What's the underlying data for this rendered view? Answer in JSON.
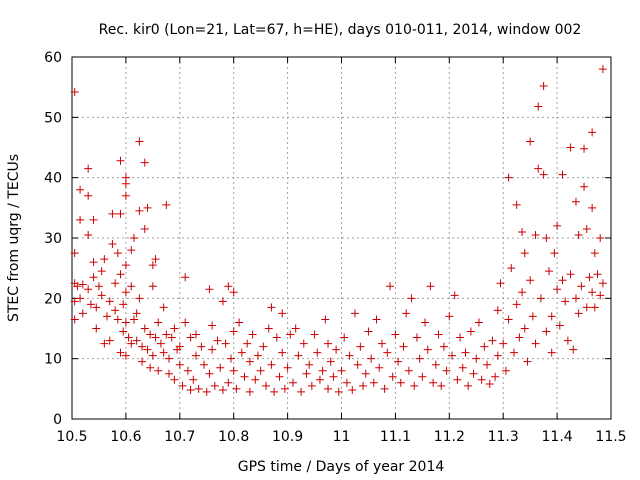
{
  "chart_data": {
    "type": "scatter",
    "title": "Rec. kir0 (Lon=21, Lat=67, h=HE), days 010-011, 2014, window 002",
    "xlabel": "GPS time / Days of year 2014",
    "ylabel": "STEC from uqrg / TECUs",
    "xlim": [
      10.5,
      11.5
    ],
    "ylim": [
      0,
      60
    ],
    "grid": true,
    "x_ticks": [
      10.5,
      10.6,
      10.7,
      10.8,
      10.9,
      11.0,
      11.1,
      11.2,
      11.3,
      11.4,
      11.5
    ],
    "x_tick_labels": [
      "10.5",
      "10.6",
      "10.7",
      "10.8",
      "10.9",
      "11",
      "11.1",
      "11.2",
      "11.3",
      "11.4",
      "11.5"
    ],
    "y_ticks": [
      0,
      10,
      20,
      30,
      40,
      50,
      60
    ],
    "y_tick_labels": [
      "0",
      "10",
      "20",
      "30",
      "40",
      "50",
      "60"
    ],
    "marker": "+",
    "color": "#cc0000",
    "series": [
      {
        "name": "STEC",
        "points": [
          [
            10.505,
            54.2
          ],
          [
            10.505,
            27.5
          ],
          [
            10.505,
            22.5
          ],
          [
            10.505,
            19.5
          ],
          [
            10.505,
            16.5
          ],
          [
            10.51,
            22.0
          ],
          [
            10.515,
            38.0
          ],
          [
            10.515,
            33.0
          ],
          [
            10.515,
            20.0
          ],
          [
            10.52,
            17.5
          ],
          [
            10.52,
            22.3
          ],
          [
            10.53,
            41.5
          ],
          [
            10.53,
            37.0
          ],
          [
            10.53,
            30.5
          ],
          [
            10.53,
            21.5
          ],
          [
            10.535,
            19.0
          ],
          [
            10.54,
            33.0
          ],
          [
            10.54,
            26.0
          ],
          [
            10.54,
            23.5
          ],
          [
            10.545,
            18.5
          ],
          [
            10.545,
            15.0
          ],
          [
            10.55,
            22.0
          ],
          [
            10.555,
            24.5
          ],
          [
            10.555,
            20.5
          ],
          [
            10.56,
            26.5
          ],
          [
            10.56,
            12.5
          ],
          [
            10.565,
            17.0
          ],
          [
            10.57,
            19.5
          ],
          [
            10.57,
            13.0
          ],
          [
            10.575,
            29.0
          ],
          [
            10.575,
            34.0
          ],
          [
            10.58,
            22.5
          ],
          [
            10.58,
            18.0
          ],
          [
            10.585,
            27.5
          ],
          [
            10.585,
            16.5
          ],
          [
            10.59,
            42.8
          ],
          [
            10.59,
            34.0
          ],
          [
            10.59,
            24.0
          ],
          [
            10.59,
            11.0
          ],
          [
            10.595,
            19.0
          ],
          [
            10.595,
            14.5
          ],
          [
            10.6,
            40.0
          ],
          [
            10.6,
            39.0
          ],
          [
            10.6,
            37.0
          ],
          [
            10.6,
            25.5
          ],
          [
            10.6,
            21.0
          ],
          [
            10.6,
            16.0
          ],
          [
            10.6,
            10.5
          ],
          [
            10.605,
            13.5
          ],
          [
            10.61,
            28.0
          ],
          [
            10.61,
            22.0
          ],
          [
            10.61,
            12.5
          ],
          [
            10.615,
            30.0
          ],
          [
            10.615,
            16.5
          ],
          [
            10.62,
            17.5
          ],
          [
            10.62,
            13.0
          ],
          [
            10.625,
            46.0
          ],
          [
            10.625,
            34.5
          ],
          [
            10.625,
            20.0
          ],
          [
            10.63,
            12.0
          ],
          [
            10.63,
            9.5
          ],
          [
            10.635,
            42.5
          ],
          [
            10.635,
            31.5
          ],
          [
            10.635,
            15.0
          ],
          [
            10.64,
            35.0
          ],
          [
            10.64,
            11.5
          ],
          [
            10.645,
            14.0
          ],
          [
            10.645,
            8.5
          ],
          [
            10.65,
            25.5
          ],
          [
            10.65,
            22.0
          ],
          [
            10.65,
            10.5
          ],
          [
            10.655,
            26.5
          ],
          [
            10.655,
            13.5
          ],
          [
            10.66,
            16.0
          ],
          [
            10.66,
            8.0
          ],
          [
            10.665,
            12.5
          ],
          [
            10.67,
            18.5
          ],
          [
            10.67,
            11.0
          ],
          [
            10.675,
            35.5
          ],
          [
            10.675,
            14.0
          ],
          [
            10.68,
            10.0
          ],
          [
            10.68,
            7.5
          ],
          [
            10.685,
            13.5
          ],
          [
            10.69,
            15.0
          ],
          [
            10.69,
            6.5
          ],
          [
            10.695,
            11.5
          ],
          [
            10.7,
            12.0
          ],
          [
            10.7,
            9.0
          ],
          [
            10.705,
            5.5
          ],
          [
            10.71,
            23.5
          ],
          [
            10.71,
            16.0
          ],
          [
            10.715,
            8.0
          ],
          [
            10.72,
            13.5
          ],
          [
            10.72,
            4.8
          ],
          [
            10.725,
            6.5
          ],
          [
            10.73,
            14.0
          ],
          [
            10.73,
            10.5
          ],
          [
            10.735,
            5.0
          ],
          [
            10.74,
            12.0
          ],
          [
            10.745,
            9.0
          ],
          [
            10.75,
            4.5
          ],
          [
            10.755,
            21.5
          ],
          [
            10.755,
            7.5
          ],
          [
            10.76,
            15.5
          ],
          [
            10.76,
            11.5
          ],
          [
            10.765,
            5.5
          ],
          [
            10.77,
            13.0
          ],
          [
            10.775,
            8.5
          ],
          [
            10.78,
            19.5
          ],
          [
            10.78,
            4.8
          ],
          [
            10.785,
            12.5
          ],
          [
            10.79,
            22.0
          ],
          [
            10.79,
            6.0
          ],
          [
            10.795,
            10.0
          ],
          [
            10.8,
            21.0
          ],
          [
            10.8,
            14.5
          ],
          [
            10.8,
            8.0
          ],
          [
            10.805,
            5.0
          ],
          [
            10.81,
            16.0
          ],
          [
            10.815,
            11.0
          ],
          [
            10.82,
            7.0
          ],
          [
            10.825,
            12.5
          ],
          [
            10.83,
            9.5
          ],
          [
            10.83,
            4.5
          ],
          [
            10.835,
            14.0
          ],
          [
            10.84,
            6.5
          ],
          [
            10.845,
            10.5
          ],
          [
            10.85,
            8.0
          ],
          [
            10.855,
            12.0
          ],
          [
            10.86,
            5.5
          ],
          [
            10.865,
            15.0
          ],
          [
            10.87,
            18.5
          ],
          [
            10.87,
            9.0
          ],
          [
            10.875,
            4.5
          ],
          [
            10.88,
            13.5
          ],
          [
            10.885,
            7.0
          ],
          [
            10.89,
            17.5
          ],
          [
            10.89,
            11.0
          ],
          [
            10.895,
            5.0
          ],
          [
            10.9,
            8.5
          ],
          [
            10.905,
            14.0
          ],
          [
            10.91,
            6.0
          ],
          [
            10.915,
            15.0
          ],
          [
            10.92,
            10.5
          ],
          [
            10.925,
            4.5
          ],
          [
            10.93,
            12.5
          ],
          [
            10.935,
            7.5
          ],
          [
            10.94,
            9.0
          ],
          [
            10.945,
            5.5
          ],
          [
            10.95,
            14.0
          ],
          [
            10.955,
            11.0
          ],
          [
            10.96,
            6.5
          ],
          [
            10.965,
            8.0
          ],
          [
            10.97,
            16.5
          ],
          [
            10.975,
            12.5
          ],
          [
            10.975,
            5.0
          ],
          [
            10.98,
            9.5
          ],
          [
            10.985,
            7.0
          ],
          [
            10.99,
            11.5
          ],
          [
            10.995,
            4.5
          ],
          [
            11.0,
            8.0
          ],
          [
            11.005,
            13.5
          ],
          [
            11.01,
            6.0
          ],
          [
            11.015,
            10.5
          ],
          [
            11.02,
            4.8
          ],
          [
            11.025,
            17.5
          ],
          [
            11.03,
            9.0
          ],
          [
            11.035,
            12.0
          ],
          [
            11.04,
            5.5
          ],
          [
            11.045,
            7.5
          ],
          [
            11.05,
            14.5
          ],
          [
            11.055,
            10.0
          ],
          [
            11.06,
            6.0
          ],
          [
            11.065,
            16.5
          ],
          [
            11.07,
            8.5
          ],
          [
            11.075,
            12.5
          ],
          [
            11.08,
            5.0
          ],
          [
            11.085,
            11.0
          ],
          [
            11.09,
            22.0
          ],
          [
            11.095,
            7.0
          ],
          [
            11.1,
            14.0
          ],
          [
            11.105,
            9.5
          ],
          [
            11.11,
            6.0
          ],
          [
            11.115,
            12.0
          ],
          [
            11.12,
            17.5
          ],
          [
            11.125,
            8.0
          ],
          [
            11.13,
            20.0
          ],
          [
            11.135,
            5.5
          ],
          [
            11.14,
            13.5
          ],
          [
            11.145,
            10.0
          ],
          [
            11.15,
            7.0
          ],
          [
            11.155,
            16.0
          ],
          [
            11.16,
            11.5
          ],
          [
            11.165,
            22.0
          ],
          [
            11.17,
            6.0
          ],
          [
            11.175,
            9.0
          ],
          [
            11.18,
            14.0
          ],
          [
            11.185,
            5.5
          ],
          [
            11.19,
            12.0
          ],
          [
            11.195,
            8.0
          ],
          [
            11.2,
            17.0
          ],
          [
            11.205,
            10.5
          ],
          [
            11.21,
            20.5
          ],
          [
            11.215,
            6.5
          ],
          [
            11.22,
            13.5
          ],
          [
            11.225,
            8.5
          ],
          [
            11.23,
            11.0
          ],
          [
            11.235,
            5.5
          ],
          [
            11.24,
            14.5
          ],
          [
            11.245,
            7.5
          ],
          [
            11.25,
            10.0
          ],
          [
            11.255,
            16.0
          ],
          [
            11.26,
            6.5
          ],
          [
            11.265,
            12.0
          ],
          [
            11.27,
            9.0
          ],
          [
            11.275,
            5.8
          ],
          [
            11.28,
            13.0
          ],
          [
            11.285,
            7.0
          ],
          [
            11.29,
            18.0
          ],
          [
            11.29,
            10.5
          ],
          [
            11.295,
            22.5
          ],
          [
            11.3,
            12.5
          ],
          [
            11.305,
            8.0
          ],
          [
            11.31,
            40.0
          ],
          [
            11.31,
            16.5
          ],
          [
            11.315,
            25.0
          ],
          [
            11.32,
            11.0
          ],
          [
            11.325,
            35.5
          ],
          [
            11.325,
            19.0
          ],
          [
            11.33,
            13.5
          ],
          [
            11.335,
            31.0
          ],
          [
            11.335,
            21.0
          ],
          [
            11.34,
            27.5
          ],
          [
            11.34,
            15.0
          ],
          [
            11.345,
            9.5
          ],
          [
            11.35,
            46.0
          ],
          [
            11.35,
            23.0
          ],
          [
            11.355,
            17.0
          ],
          [
            11.36,
            30.5
          ],
          [
            11.36,
            12.5
          ],
          [
            11.365,
            51.8
          ],
          [
            11.365,
            41.5
          ],
          [
            11.37,
            20.0
          ],
          [
            11.375,
            55.2
          ],
          [
            11.375,
            40.5
          ],
          [
            11.38,
            30.0
          ],
          [
            11.38,
            14.5
          ],
          [
            11.385,
            24.5
          ],
          [
            11.39,
            17.0
          ],
          [
            11.39,
            11.0
          ],
          [
            11.395,
            27.5
          ],
          [
            11.4,
            32.0
          ],
          [
            11.4,
            21.5
          ],
          [
            11.405,
            15.5
          ],
          [
            11.41,
            40.5
          ],
          [
            11.41,
            23.0
          ],
          [
            11.415,
            19.5
          ],
          [
            11.42,
            13.0
          ],
          [
            11.425,
            45.0
          ],
          [
            11.425,
            24.0
          ],
          [
            11.43,
            11.5
          ],
          [
            11.435,
            36.0
          ],
          [
            11.435,
            20.0
          ],
          [
            11.44,
            30.5
          ],
          [
            11.44,
            17.5
          ],
          [
            11.445,
            22.0
          ],
          [
            11.45,
            38.5
          ],
          [
            11.45,
            44.8
          ],
          [
            11.455,
            31.5
          ],
          [
            11.455,
            18.5
          ],
          [
            11.46,
            23.5
          ],
          [
            11.465,
            47.5
          ],
          [
            11.465,
            35.0
          ],
          [
            11.465,
            21.0
          ],
          [
            11.47,
            27.5
          ],
          [
            11.47,
            18.5
          ],
          [
            11.475,
            24.0
          ],
          [
            11.48,
            30.0
          ],
          [
            11.48,
            20.5
          ],
          [
            11.485,
            58.0
          ],
          [
            11.485,
            22.5
          ]
        ]
      }
    ]
  }
}
